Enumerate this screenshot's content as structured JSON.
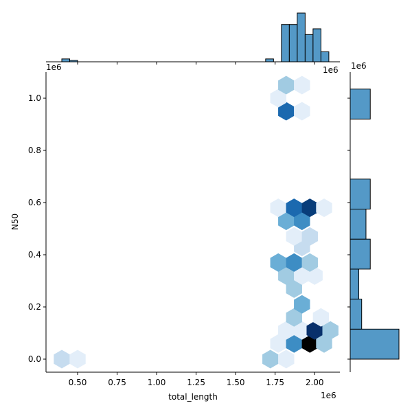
{
  "chart_data": {
    "type": "hexbin-joint",
    "xlabel": "total_length",
    "ylabel": "N50",
    "x_offset_label": "1e6",
    "y_offset_label": "1e6",
    "marginal_x_offset_label": "1e6",
    "marginal_y_offset_label": "1e6",
    "xlim": [
      0.3,
      2.16
    ],
    "ylim": [
      -0.05,
      1.1
    ],
    "xticks": [
      0.5,
      0.75,
      1.0,
      1.25,
      1.5,
      1.75,
      2.0
    ],
    "xtick_labels": [
      "0.50",
      "0.75",
      "1.00",
      "1.25",
      "1.50",
      "1.75",
      "2.00"
    ],
    "yticks": [
      0.0,
      0.2,
      0.4,
      0.6,
      0.8,
      1.0
    ],
    "ytick_labels": [
      "0.0",
      "0.2",
      "0.4",
      "0.6",
      "0.8",
      "1.0"
    ],
    "colormap": [
      "#e3eef9",
      "#c6dcef",
      "#a1cbe2",
      "#6aaed6",
      "#3d8dc4",
      "#1b69af",
      "#083d7a",
      "#08306b",
      "#000000"
    ],
    "hexbins": [
      {
        "x": 0.4,
        "y": 0.0,
        "level": 1
      },
      {
        "x": 0.5,
        "y": 0.0,
        "level": 0
      },
      {
        "x": 1.72,
        "y": 0.0,
        "level": 2
      },
      {
        "x": 1.82,
        "y": 0.0,
        "level": 0
      },
      {
        "x": 1.77,
        "y": 0.06,
        "level": 0
      },
      {
        "x": 1.87,
        "y": 0.06,
        "level": 4
      },
      {
        "x": 1.97,
        "y": 0.06,
        "level": 8
      },
      {
        "x": 2.06,
        "y": 0.06,
        "level": 2
      },
      {
        "x": 1.82,
        "y": 0.11,
        "level": 0
      },
      {
        "x": 1.92,
        "y": 0.11,
        "level": 0
      },
      {
        "x": 2.0,
        "y": 0.11,
        "level": 7
      },
      {
        "x": 2.1,
        "y": 0.11,
        "level": 2
      },
      {
        "x": 1.87,
        "y": 0.16,
        "level": 2
      },
      {
        "x": 2.04,
        "y": 0.16,
        "level": 0
      },
      {
        "x": 1.92,
        "y": 0.21,
        "level": 3
      },
      {
        "x": 1.87,
        "y": 0.27,
        "level": 2
      },
      {
        "x": 1.82,
        "y": 0.32,
        "level": 2
      },
      {
        "x": 1.92,
        "y": 0.32,
        "level": 0
      },
      {
        "x": 2.0,
        "y": 0.32,
        "level": 0
      },
      {
        "x": 1.77,
        "y": 0.37,
        "level": 3
      },
      {
        "x": 1.87,
        "y": 0.37,
        "level": 4
      },
      {
        "x": 1.97,
        "y": 0.37,
        "level": 2
      },
      {
        "x": 1.92,
        "y": 0.43,
        "level": 1
      },
      {
        "x": 1.87,
        "y": 0.47,
        "level": 0
      },
      {
        "x": 1.97,
        "y": 0.47,
        "level": 1
      },
      {
        "x": 1.82,
        "y": 0.53,
        "level": 3
      },
      {
        "x": 1.92,
        "y": 0.53,
        "level": 4
      },
      {
        "x": 1.77,
        "y": 0.58,
        "level": 0
      },
      {
        "x": 1.87,
        "y": 0.58,
        "level": 5
      },
      {
        "x": 1.97,
        "y": 0.58,
        "level": 6
      },
      {
        "x": 2.06,
        "y": 0.58,
        "level": 0
      },
      {
        "x": 1.82,
        "y": 0.95,
        "level": 5
      },
      {
        "x": 1.92,
        "y": 0.95,
        "level": 0
      },
      {
        "x": 1.77,
        "y": 1.0,
        "level": 0
      },
      {
        "x": 1.82,
        "y": 1.05,
        "level": 2
      },
      {
        "x": 1.92,
        "y": 1.05,
        "level": 0
      }
    ],
    "marginal_x_hist": {
      "bin_edges": [
        0.35,
        0.4,
        0.45,
        0.5,
        0.55,
        0.6,
        0.65,
        0.7,
        0.75,
        0.8,
        0.85,
        0.9,
        0.95,
        1.0,
        1.05,
        1.1,
        1.15,
        1.2,
        1.25,
        1.3,
        1.35,
        1.4,
        1.45,
        1.5,
        1.55,
        1.6,
        1.65,
        1.7,
        1.75,
        1.8,
        1.85,
        1.9,
        1.95,
        2.0,
        2.05,
        2.1
      ],
      "counts": [
        0,
        1,
        0.5,
        0,
        0,
        0,
        0,
        0,
        0,
        0,
        0,
        0,
        0,
        0,
        0,
        0,
        0,
        0,
        0,
        0,
        0,
        0,
        0,
        0,
        0,
        0,
        0.5,
        0,
        0,
        0,
        0,
        0,
        0,
        0,
        0
      ],
      "heights": [
        {
          "x0": 0.4,
          "x1": 0.45,
          "count": 1
        },
        {
          "x0": 0.45,
          "x1": 0.5,
          "count": 0.5
        },
        {
          "x0": 1.69,
          "x1": 1.74,
          "count": 1
        },
        {
          "x0": 1.79,
          "x1": 1.84,
          "count": 13
        },
        {
          "x0": 1.84,
          "x1": 1.89,
          "count": 13
        },
        {
          "x0": 1.89,
          "x1": 1.94,
          "count": 17
        },
        {
          "x0": 1.94,
          "x1": 1.99,
          "count": 9.5
        },
        {
          "x0": 1.99,
          "x1": 2.04,
          "count": 11.5
        },
        {
          "x0": 2.04,
          "x1": 2.09,
          "count": 3.5
        }
      ],
      "max_count": 17
    },
    "marginal_y_hist": {
      "bars": [
        {
          "y0": 0.0,
          "y1": 0.115,
          "count": 17
        },
        {
          "y0": 0.115,
          "y1": 0.23,
          "count": 4
        },
        {
          "y0": 0.23,
          "y1": 0.345,
          "count": 3
        },
        {
          "y0": 0.345,
          "y1": 0.46,
          "count": 7
        },
        {
          "y0": 0.46,
          "y1": 0.575,
          "count": 5.5
        },
        {
          "y0": 0.575,
          "y1": 0.69,
          "count": 7
        },
        {
          "y0": 0.69,
          "y1": 0.805,
          "count": 0
        },
        {
          "y0": 0.805,
          "y1": 0.92,
          "count": 0
        },
        {
          "y0": 0.92,
          "y1": 1.035,
          "count": 7
        }
      ],
      "max_count": 17
    },
    "bar_color": "#5499c7",
    "bar_edge": "#000000"
  }
}
